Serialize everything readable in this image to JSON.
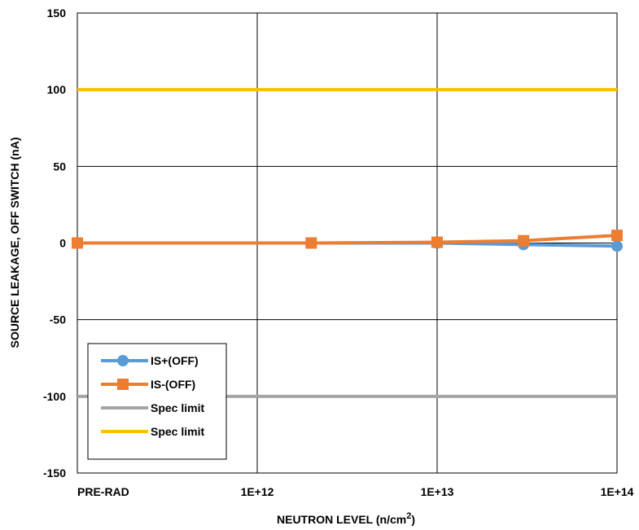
{
  "chart_data": {
    "type": "line",
    "xlabel": "NEUTRON LEVEL (n/cm",
    "xlabel_sup": "2",
    "xlabel_end": ")",
    "ylabel": "SOURCE LEAKAGE, OFF SWITCH (nA)",
    "x_scale": "log",
    "x_ticks": [
      {
        "label": "PRE-RAD",
        "pos": 0
      },
      {
        "label": "1E+12",
        "pos": 1
      },
      {
        "label": "1E+13",
        "pos": 2
      },
      {
        "label": "1E+14",
        "pos": 3
      }
    ],
    "ylim": [
      -150,
      150
    ],
    "y_ticks": [
      150,
      100,
      50,
      0,
      -50,
      -100,
      -150
    ],
    "grid": true,
    "legend_position": "bottom-left",
    "series": [
      {
        "name": "IS+(OFF)",
        "color": "#5b9bd5",
        "marker": "circle",
        "x_pos": [
          0,
          1.3,
          2.0,
          2.48,
          3.0
        ],
        "y": [
          0,
          0,
          0,
          -1,
          -2
        ]
      },
      {
        "name": "IS-(OFF)",
        "color": "#ed7d31",
        "marker": "square",
        "x_pos": [
          0,
          1.3,
          2.0,
          2.48,
          3.0
        ],
        "y": [
          0,
          0,
          0.5,
          1.5,
          5
        ]
      }
    ],
    "reference_lines": [
      {
        "name": "Spec limit",
        "color": "#a5a5a5",
        "y": -100
      },
      {
        "name": "Spec limit",
        "color": "#ffc000",
        "y": 100
      }
    ]
  }
}
